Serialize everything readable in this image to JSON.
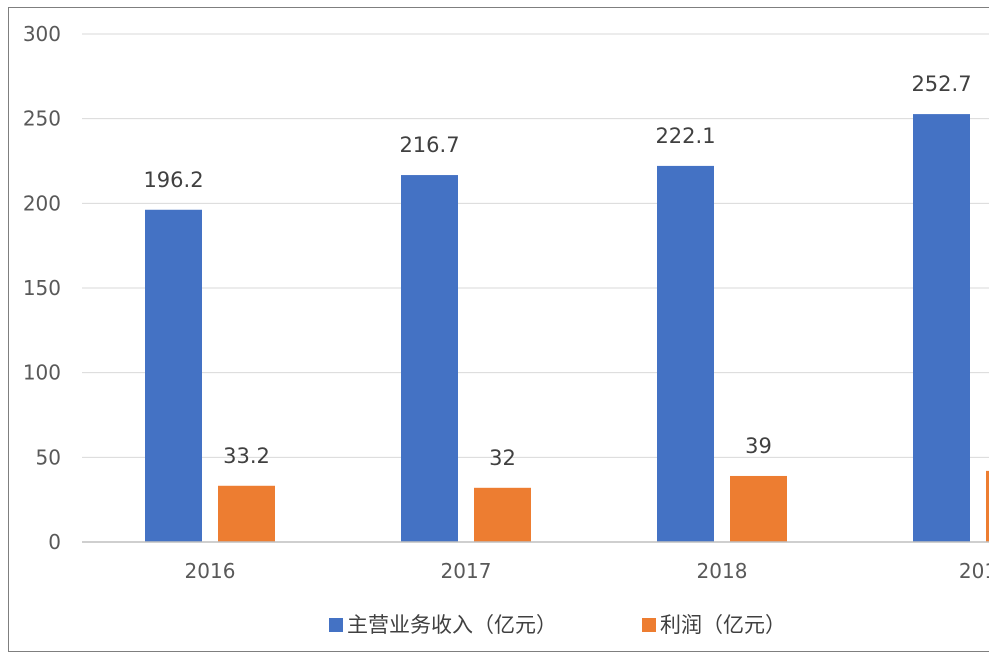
{
  "chart_data": {
    "type": "bar",
    "title": "",
    "xlabel": "",
    "ylabel": "",
    "ylim": [
      0,
      300
    ],
    "y_ticks": [
      0,
      50,
      100,
      150,
      200,
      250,
      300
    ],
    "grid": true,
    "legend_position": "bottom",
    "categories": [
      "2016",
      "2017",
      "2018",
      "201"
    ],
    "series": [
      {
        "name": "主营业务收入（亿元）",
        "color": "#4472C4",
        "values": [
          196.2,
          216.7,
          222.1,
          252.7
        ],
        "labels": [
          "196.2",
          "216.7",
          "222.1",
          "252.7"
        ]
      },
      {
        "name": "利润（亿元）",
        "color": "#ED7D31",
        "values": [
          33.2,
          32,
          39,
          42
        ],
        "labels": [
          "33.2",
          "32",
          "39",
          ""
        ]
      }
    ]
  }
}
